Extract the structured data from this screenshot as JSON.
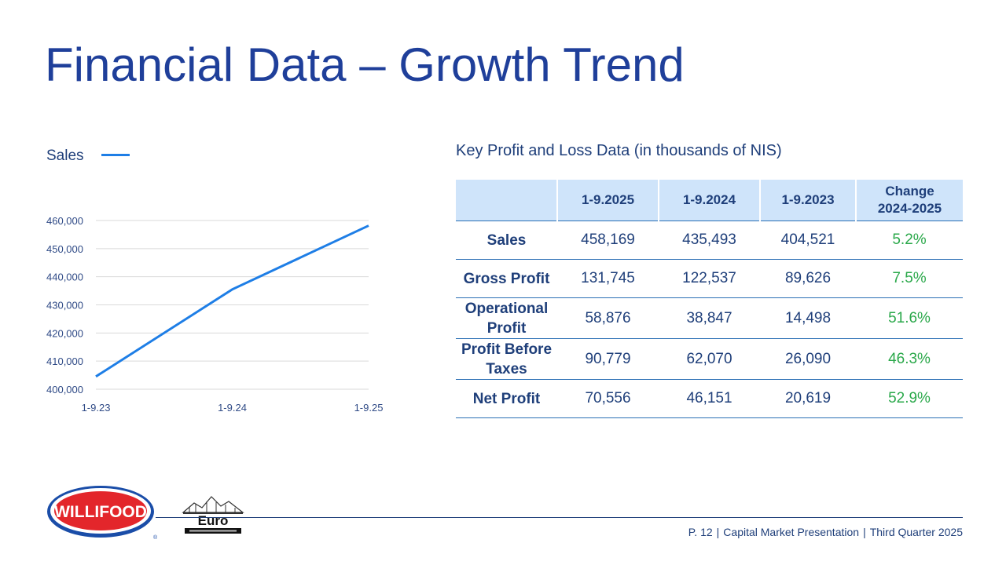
{
  "title": "Financial Data – Growth Trend",
  "chart_data": {
    "type": "line",
    "legend": "Sales",
    "categories": [
      "1-9.23",
      "1-9.24",
      "1-9.25"
    ],
    "series": [
      {
        "name": "Sales",
        "values": [
          404521,
          435493,
          458169
        ]
      }
    ],
    "ylim": [
      400000,
      460000
    ],
    "yticks": [
      400000,
      410000,
      420000,
      430000,
      440000,
      450000,
      460000
    ],
    "ytick_labels": [
      "400,000",
      "410,000",
      "420,000",
      "430,000",
      "440,000",
      "450,000",
      "460,000"
    ],
    "line_color": "#1e7ee6",
    "grid": true
  },
  "table": {
    "title": "Key Profit and Loss Data (in thousands of NIS)",
    "headers": [
      "",
      "1-9.2025",
      "1-9.2024",
      "1-9.2023",
      "Change\n2024-2025"
    ],
    "rows": [
      {
        "label": "Sales",
        "values": [
          "458,169",
          "435,493",
          "404,521"
        ],
        "change": "5.2%"
      },
      {
        "label": "Gross Profit",
        "values": [
          "131,745",
          "122,537",
          "89,626"
        ],
        "change": "7.5%"
      },
      {
        "label": "Operational Profit",
        "values": [
          "58,876",
          "38,847",
          "14,498"
        ],
        "change": "51.6%"
      },
      {
        "label": "Profit Before Taxes",
        "values": [
          "90,779",
          "62,070",
          "26,090"
        ],
        "change": "46.3%"
      },
      {
        "label": "Net Profit",
        "values": [
          "70,556",
          "46,151",
          "20,619"
        ],
        "change": "52.9%"
      }
    ]
  },
  "footer": {
    "page": "P. 12",
    "presentation": "Capital Market Presentation",
    "quarter": "Third Quarter 2025"
  },
  "logos": {
    "willifood": "WILLIFOOD",
    "euro": "Euro"
  },
  "colors": {
    "title": "#1f3f9a",
    "positive": "#2aa84a",
    "header_bg": "#cfe4fa"
  }
}
